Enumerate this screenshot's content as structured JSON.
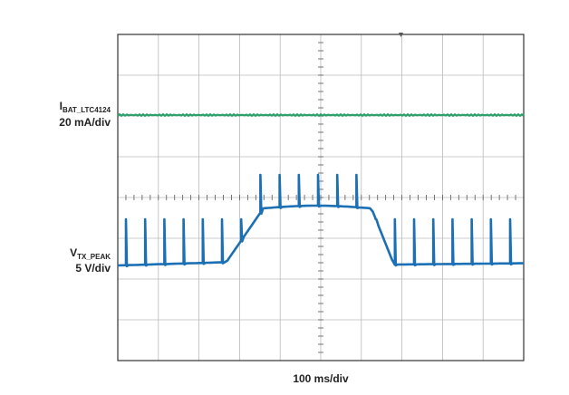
{
  "trace1": {
    "symbol": "I",
    "subscript": "BAT_LTC4124",
    "scale": "20 mA/div"
  },
  "trace2": {
    "symbol": "V",
    "subscript": "TX_PEAK",
    "scale": "5 V/div"
  },
  "timebase": "100 ms/div"
}
